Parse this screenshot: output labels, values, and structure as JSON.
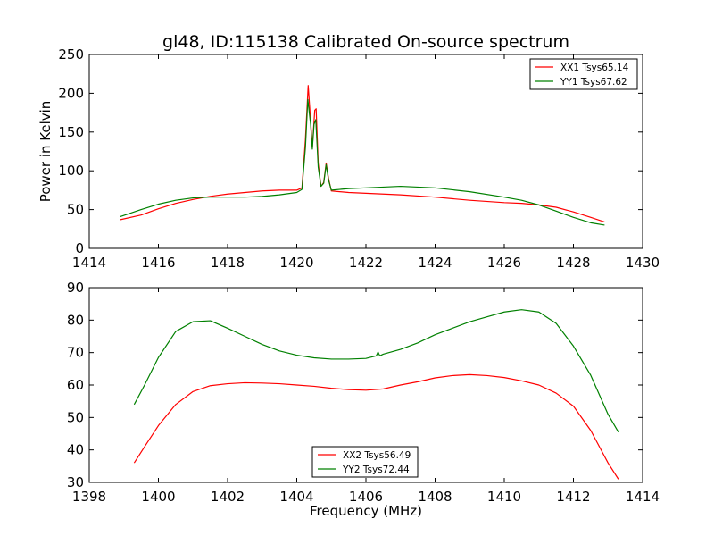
{
  "chart_data": [
    {
      "type": "line",
      "title": "gl48, ID:115138 Calibrated On-source spectrum",
      "xlabel": "",
      "ylabel": "Power in Kelvin",
      "xlim": [
        1414,
        1430
      ],
      "ylim": [
        0,
        250
      ],
      "x_ticks": [
        "1414",
        "1416",
        "1418",
        "1420",
        "1422",
        "1424",
        "1426",
        "1428",
        "1430"
      ],
      "y_ticks": [
        "0",
        "50",
        "100",
        "150",
        "200",
        "250"
      ],
      "grid": false,
      "legend_position": "top-right",
      "series": [
        {
          "name": "XX1 Tsys65.14",
          "color": "#ff0000",
          "points": [
            [
              1414.9,
              37
            ],
            [
              1415.5,
              43
            ],
            [
              1416,
              51
            ],
            [
              1416.5,
              58
            ],
            [
              1417,
              63
            ],
            [
              1417.5,
              67
            ],
            [
              1418,
              70
            ],
            [
              1418.5,
              72
            ],
            [
              1419,
              74
            ],
            [
              1419.5,
              75
            ],
            [
              1420,
              75
            ],
            [
              1420.15,
              78
            ],
            [
              1420.25,
              140
            ],
            [
              1420.33,
              210
            ],
            [
              1420.4,
              165
            ],
            [
              1420.45,
              130
            ],
            [
              1420.52,
              178
            ],
            [
              1420.56,
              180
            ],
            [
              1420.62,
              110
            ],
            [
              1420.7,
              80
            ],
            [
              1420.78,
              85
            ],
            [
              1420.85,
              110
            ],
            [
              1420.92,
              90
            ],
            [
              1421,
              74
            ],
            [
              1421.5,
              72
            ],
            [
              1422,
              71
            ],
            [
              1423,
              69
            ],
            [
              1424,
              66
            ],
            [
              1425,
              62
            ],
            [
              1426,
              59
            ],
            [
              1426.5,
              58
            ],
            [
              1427,
              56
            ],
            [
              1427.5,
              53
            ],
            [
              1428,
              47
            ],
            [
              1428.5,
              40
            ],
            [
              1428.9,
              34
            ]
          ]
        },
        {
          "name": "YY1 Tsys67.62",
          "color": "#008000",
          "points": [
            [
              1414.9,
              41
            ],
            [
              1415.5,
              50
            ],
            [
              1416,
              57
            ],
            [
              1416.5,
              62
            ],
            [
              1417,
              65
            ],
            [
              1417.5,
              66
            ],
            [
              1418,
              66
            ],
            [
              1418.5,
              66
            ],
            [
              1419,
              67
            ],
            [
              1419.5,
              69
            ],
            [
              1420,
              72
            ],
            [
              1420.15,
              76
            ],
            [
              1420.25,
              130
            ],
            [
              1420.32,
              192
            ],
            [
              1420.4,
              160
            ],
            [
              1420.45,
              128
            ],
            [
              1420.5,
              160
            ],
            [
              1420.55,
              166
            ],
            [
              1420.62,
              105
            ],
            [
              1420.7,
              80
            ],
            [
              1420.78,
              84
            ],
            [
              1420.85,
              108
            ],
            [
              1420.92,
              88
            ],
            [
              1421,
              75
            ],
            [
              1421.5,
              77
            ],
            [
              1422,
              78
            ],
            [
              1423,
              80
            ],
            [
              1424,
              78
            ],
            [
              1425,
              73
            ],
            [
              1426,
              66
            ],
            [
              1426.5,
              62
            ],
            [
              1427,
              56
            ],
            [
              1427.5,
              48
            ],
            [
              1428,
              40
            ],
            [
              1428.5,
              33
            ],
            [
              1428.9,
              30
            ]
          ]
        }
      ]
    },
    {
      "type": "line",
      "title": "",
      "xlabel": "Frequency (MHz)",
      "ylabel": "",
      "xlim": [
        1398,
        1414
      ],
      "ylim": [
        30,
        90
      ],
      "x_ticks": [
        "1398",
        "1400",
        "1402",
        "1404",
        "1406",
        "1408",
        "1410",
        "1412",
        "1414"
      ],
      "y_ticks": [
        "30",
        "40",
        "50",
        "60",
        "70",
        "80",
        "90"
      ],
      "grid": false,
      "legend_position": "bottom-center",
      "series": [
        {
          "name": "XX2 Tsys56.49",
          "color": "#ff0000",
          "points": [
            [
              1399.3,
              36
            ],
            [
              1399.6,
              41
            ],
            [
              1400,
              47.5
            ],
            [
              1400.5,
              54
            ],
            [
              1401,
              58
            ],
            [
              1401.5,
              59.8
            ],
            [
              1402,
              60.4
            ],
            [
              1402.5,
              60.7
            ],
            [
              1403,
              60.6
            ],
            [
              1403.5,
              60.4
            ],
            [
              1404,
              60
            ],
            [
              1404.5,
              59.6
            ],
            [
              1405,
              59
            ],
            [
              1405.5,
              58.6
            ],
            [
              1406,
              58.4
            ],
            [
              1406.5,
              58.8
            ],
            [
              1407,
              60
            ],
            [
              1407.5,
              61
            ],
            [
              1408,
              62.2
            ],
            [
              1408.5,
              62.9
            ],
            [
              1409,
              63.2
            ],
            [
              1409.5,
              62.9
            ],
            [
              1410,
              62.3
            ],
            [
              1410.5,
              61.3
            ],
            [
              1411,
              60
            ],
            [
              1411.5,
              57.5
            ],
            [
              1412,
              53.5
            ],
            [
              1412.5,
              46
            ],
            [
              1413,
              36
            ],
            [
              1413.3,
              31
            ]
          ]
        },
        {
          "name": "YY2 Tsys72.44",
          "color": "#008000",
          "points": [
            [
              1399.3,
              54
            ],
            [
              1399.6,
              60
            ],
            [
              1400,
              68.5
            ],
            [
              1400.5,
              76.5
            ],
            [
              1401,
              79.5
            ],
            [
              1401.5,
              79.8
            ],
            [
              1402,
              77.5
            ],
            [
              1402.5,
              75
            ],
            [
              1403,
              72.5
            ],
            [
              1403.5,
              70.5
            ],
            [
              1404,
              69.2
            ],
            [
              1404.5,
              68.4
            ],
            [
              1405,
              68
            ],
            [
              1405.5,
              68
            ],
            [
              1406,
              68.2
            ],
            [
              1406.3,
              69
            ],
            [
              1406.35,
              70.2
            ],
            [
              1406.4,
              69
            ],
            [
              1406.5,
              69.5
            ],
            [
              1407,
              71
            ],
            [
              1407.5,
              73
            ],
            [
              1408,
              75.5
            ],
            [
              1408.5,
              77.5
            ],
            [
              1409,
              79.5
            ],
            [
              1409.5,
              81
            ],
            [
              1410,
              82.5
            ],
            [
              1410.5,
              83.2
            ],
            [
              1411,
              82.5
            ],
            [
              1411.5,
              79
            ],
            [
              1412,
              72
            ],
            [
              1412.5,
              63
            ],
            [
              1413,
              51
            ],
            [
              1413.3,
              45.5
            ]
          ]
        }
      ]
    }
  ]
}
